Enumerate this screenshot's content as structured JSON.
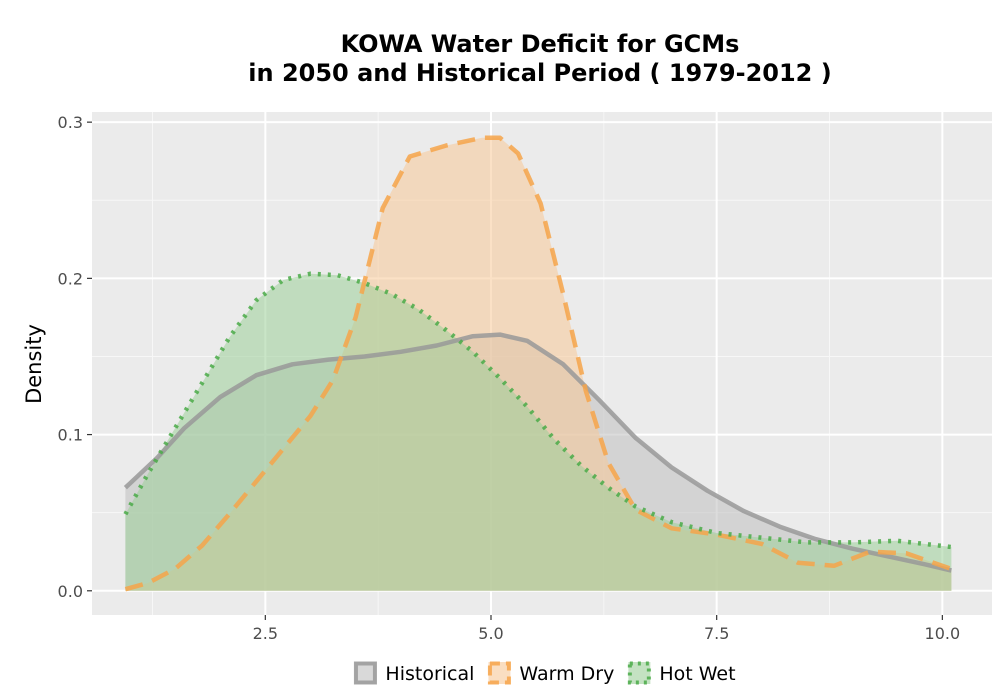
{
  "chart_data": {
    "type": "area",
    "title_lines": [
      "KOWA  Water Deficit for GCMs",
      "in 2050 and Historical Period ( 1979-2012 )"
    ],
    "xlabel": "",
    "ylabel": "Density",
    "xlim": [
      0.58,
      10.55
    ],
    "ylim": [
      -0.0155,
      0.3065
    ],
    "x_ticks": [
      2.5,
      5.0,
      7.5,
      10.0
    ],
    "x_tick_labels": [
      "2.5",
      "5.0",
      "7.5",
      "10.0"
    ],
    "y_ticks": [
      0.0,
      0.1,
      0.2,
      0.3
    ],
    "y_tick_labels": [
      "0.0",
      "0.1",
      "0.2",
      "0.3"
    ],
    "grid": true,
    "legend_position": "bottom",
    "series": [
      {
        "name": "Historical",
        "color": "#999999",
        "fill": "#bfbfbf",
        "line_style": "solid",
        "points": [
          [
            0.95,
            0.066
          ],
          [
            1.3,
            0.085
          ],
          [
            1.6,
            0.104
          ],
          [
            2.0,
            0.124
          ],
          [
            2.4,
            0.138
          ],
          [
            2.8,
            0.145
          ],
          [
            3.2,
            0.148
          ],
          [
            3.6,
            0.15
          ],
          [
            4.0,
            0.153
          ],
          [
            4.4,
            0.157
          ],
          [
            4.8,
            0.163
          ],
          [
            5.1,
            0.164
          ],
          [
            5.4,
            0.16
          ],
          [
            5.8,
            0.145
          ],
          [
            6.2,
            0.122
          ],
          [
            6.6,
            0.098
          ],
          [
            7.0,
            0.079
          ],
          [
            7.4,
            0.064
          ],
          [
            7.8,
            0.051
          ],
          [
            8.2,
            0.041
          ],
          [
            8.6,
            0.033
          ],
          [
            9.0,
            0.027
          ],
          [
            9.4,
            0.022
          ],
          [
            9.8,
            0.017
          ],
          [
            10.1,
            0.013
          ]
        ]
      },
      {
        "name": "Warm Dry",
        "color": "#f6a54a",
        "fill": "#f7c898",
        "line_style": "dashed",
        "points": [
          [
            0.95,
            0.001
          ],
          [
            1.2,
            0.005
          ],
          [
            1.5,
            0.014
          ],
          [
            1.8,
            0.029
          ],
          [
            2.1,
            0.049
          ],
          [
            2.4,
            0.07
          ],
          [
            2.7,
            0.091
          ],
          [
            3.0,
            0.112
          ],
          [
            3.25,
            0.135
          ],
          [
            3.5,
            0.175
          ],
          [
            3.8,
            0.245
          ],
          [
            4.1,
            0.278
          ],
          [
            4.5,
            0.285
          ],
          [
            4.9,
            0.29
          ],
          [
            5.1,
            0.29
          ],
          [
            5.3,
            0.28
          ],
          [
            5.55,
            0.248
          ],
          [
            5.8,
            0.19
          ],
          [
            6.05,
            0.128
          ],
          [
            6.3,
            0.082
          ],
          [
            6.6,
            0.052
          ],
          [
            7.0,
            0.04
          ],
          [
            7.5,
            0.036
          ],
          [
            8.0,
            0.03
          ],
          [
            8.4,
            0.018
          ],
          [
            8.8,
            0.016
          ],
          [
            9.2,
            0.025
          ],
          [
            9.6,
            0.024
          ],
          [
            10.1,
            0.014
          ]
        ]
      },
      {
        "name": "Hot Wet",
        "color": "#4aaa48",
        "fill": "#9ccf99",
        "line_style": "dotted",
        "points": [
          [
            0.95,
            0.049
          ],
          [
            1.2,
            0.075
          ],
          [
            1.5,
            0.104
          ],
          [
            1.8,
            0.133
          ],
          [
            2.1,
            0.162
          ],
          [
            2.4,
            0.186
          ],
          [
            2.7,
            0.199
          ],
          [
            3.0,
            0.203
          ],
          [
            3.3,
            0.202
          ],
          [
            3.6,
            0.197
          ],
          [
            3.9,
            0.19
          ],
          [
            4.2,
            0.18
          ],
          [
            4.5,
            0.167
          ],
          [
            4.8,
            0.153
          ],
          [
            5.1,
            0.136
          ],
          [
            5.4,
            0.118
          ],
          [
            5.7,
            0.097
          ],
          [
            6.0,
            0.08
          ],
          [
            6.3,
            0.066
          ],
          [
            6.6,
            0.054
          ],
          [
            7.0,
            0.044
          ],
          [
            7.5,
            0.037
          ],
          [
            8.0,
            0.034
          ],
          [
            8.5,
            0.031
          ],
          [
            9.0,
            0.031
          ],
          [
            9.5,
            0.032
          ],
          [
            10.1,
            0.028
          ]
        ]
      }
    ]
  }
}
